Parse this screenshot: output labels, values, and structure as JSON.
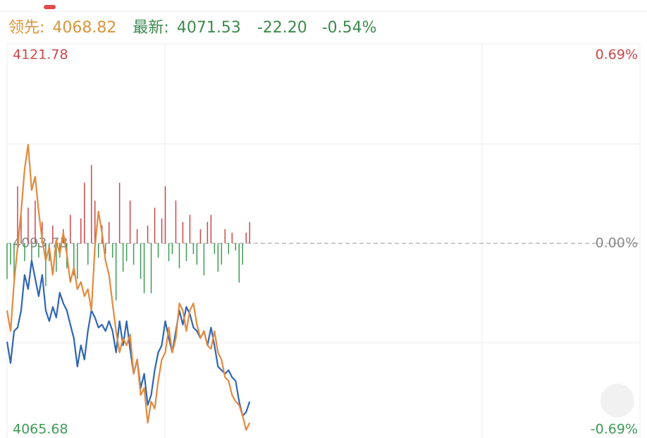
{
  "header": {
    "lead_label": "领先:",
    "lead_value": "4068.82",
    "latest_label": "最新:",
    "latest_value": "4071.53",
    "change": "-22.20",
    "change_pct": "-0.54%"
  },
  "chart_data": {
    "type": "line",
    "x": [
      0,
      1,
      2,
      3,
      4,
      5,
      6,
      7,
      8,
      9,
      10,
      11,
      12,
      13,
      14,
      15,
      16,
      17,
      18,
      19,
      20,
      21,
      22,
      23,
      24,
      25,
      26,
      27,
      28,
      29,
      30,
      31,
      32,
      33,
      34,
      35,
      36,
      37,
      38,
      39,
      40,
      41,
      42,
      43,
      44,
      45,
      46,
      47,
      48,
      49,
      50,
      51,
      52,
      53,
      54,
      55,
      56,
      57,
      58,
      59,
      60,
      61,
      62,
      63,
      64,
      65,
      66,
      67,
      68,
      69
    ],
    "xlim": [
      0,
      180
    ],
    "ylim": [
      4065.68,
      4121.78
    ],
    "yticks": [
      4065.68,
      4093.73,
      4121.78
    ],
    "y2lim": [
      -0.69,
      0.69
    ],
    "y2ticks": [
      {
        "value": -0.69,
        "label": "-0.69%"
      },
      {
        "value": 0,
        "label": "0.00%"
      },
      {
        "value": 0.69,
        "label": "0.69%"
      }
    ],
    "up_color": "#c9484a",
    "down_color": "#3f9a56",
    "series": [
      {
        "color": "#2f66b3",
        "values": [
          4079.9,
          4076.9,
          4081.4,
          4081.9,
          4084.3,
          4089.3,
          4087.3,
          4091.3,
          4088.8,
          4086.3,
          4089.3,
          4084.3,
          4082.8,
          4084.8,
          4083.3,
          4086.8,
          4085.3,
          4084.3,
          4082.3,
          4080.4,
          4076.4,
          4079.4,
          4077.4,
          4081.4,
          4084.3,
          4083.3,
          4081.9,
          4082.3,
          4081.4,
          4082.8,
          4081.4,
          4078.4,
          4082.8,
          4079.4,
          4082.8,
          4078.9,
          4075.4,
          4077.4,
          4073.4,
          4075.4,
          4071.0,
          4072.4,
          4075.9,
          4078.4,
          4079.4,
          4082.8,
          4080.4,
          4078.4,
          4081.4,
          4084.3,
          4082.3,
          4084.8,
          4083.8,
          4081.9,
          4081.4,
          4080.4,
          4081.4,
          4079.4,
          4081.9,
          4079.4,
          4076.4,
          4075.9,
          4075.4,
          4075.9,
          4074.9,
          4074.4,
          4071.5,
          4069.5,
          4070.0,
          4071.5
        ]
      },
      {
        "color": "#e38a3e",
        "values": [
          4084.3,
          4081.4,
          4088.3,
          4093.2,
          4098.2,
          4104.1,
          4107.6,
          4101.2,
          4103.1,
          4098.2,
          4094.2,
          4091.3,
          4093.2,
          4089.3,
          4094.2,
          4092.2,
          4095.2,
          4092.2,
          4088.3,
          4090.3,
          4087.3,
          4088.3,
          4086.3,
          4087.3,
          4084.3,
          4093.2,
          4098.2,
          4095.2,
          4091.3,
          4089.3,
          4085.3,
          4081.4,
          4078.4,
          4080.4,
          4079.4,
          4080.9,
          4075.4,
          4077.4,
          4072.4,
          4073.4,
          4068.5,
          4071.5,
          4070.5,
          4074.4,
          4077.4,
          4078.4,
          4081.9,
          4078.4,
          4080.4,
          4085.3,
          4084.3,
          4081.4,
          4084.3,
          4085.3,
          4082.3,
          4080.4,
          4081.4,
          4079.4,
          4078.9,
          4081.4,
          4078.4,
          4077.4,
          4074.9,
          4074.4,
          4072.4,
          4071.5,
          4071.0,
          4069.5,
          4067.5,
          4068.5
        ]
      }
    ],
    "bars": {
      "lim": 28,
      "values": [
        -5,
        -3,
        -5.5,
        8,
        4,
        -2.5,
        5,
        -3,
        6,
        -2,
        3,
        -6,
        -2.5,
        2.5,
        -4,
        -2,
        2,
        -3.5,
        4,
        -4.5,
        -5,
        3.5,
        8.5,
        -3,
        11,
        6,
        -2,
        2.5,
        -1.5,
        3,
        -2,
        -8,
        8.5,
        -4,
        -2.5,
        6,
        -3,
        2,
        -5,
        -7,
        2.5,
        -7,
        5,
        -2,
        3.5,
        8,
        -2.5,
        -1.5,
        6,
        -3.5,
        3,
        -2.5,
        4,
        -1.5,
        -3,
        2,
        -4.5,
        3,
        4,
        -1.5,
        -4,
        -3,
        2,
        -1.5,
        1.5,
        -1,
        -5.5,
        -3,
        1.5,
        3
      ]
    }
  }
}
